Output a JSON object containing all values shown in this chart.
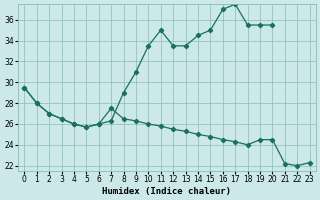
{
  "xlabel": "Humidex (Indice chaleur)",
  "bg_color": "#cce8e8",
  "grid_color": "#89bbbb",
  "line_color": "#1a7060",
  "xlim": [
    -0.5,
    23.5
  ],
  "ylim": [
    21.5,
    37.5
  ],
  "xticks": [
    0,
    1,
    2,
    3,
    4,
    5,
    6,
    7,
    8,
    9,
    10,
    11,
    12,
    13,
    14,
    15,
    16,
    17,
    18,
    19,
    20,
    21,
    22,
    23
  ],
  "yticks": [
    22,
    24,
    26,
    28,
    30,
    32,
    34,
    36
  ],
  "upper_x": [
    0,
    1,
    2,
    3,
    4,
    5,
    6,
    7,
    8,
    9,
    10,
    11,
    12,
    13,
    14,
    15,
    16,
    17,
    18,
    19,
    20
  ],
  "upper_y": [
    29.5,
    28.0,
    27.0,
    26.5,
    26.0,
    25.7,
    26.0,
    26.3,
    29.0,
    31.0,
    33.5,
    35.0,
    33.5,
    33.5,
    34.5,
    35.0,
    37.0,
    37.5,
    35.5,
    35.5,
    35.5
  ],
  "lower_x": [
    0,
    1,
    2,
    3,
    4,
    5,
    6,
    7,
    8,
    9,
    10,
    11,
    12,
    13,
    14,
    15,
    16,
    17,
    18,
    19,
    20,
    21,
    22,
    23
  ],
  "lower_y": [
    29.5,
    28.0,
    27.0,
    26.5,
    26.0,
    25.7,
    26.0,
    27.5,
    26.5,
    26.3,
    26.0,
    25.8,
    25.5,
    25.3,
    25.0,
    24.8,
    24.5,
    24.3,
    24.0,
    24.5,
    24.5,
    22.2,
    22.0,
    22.3
  ]
}
